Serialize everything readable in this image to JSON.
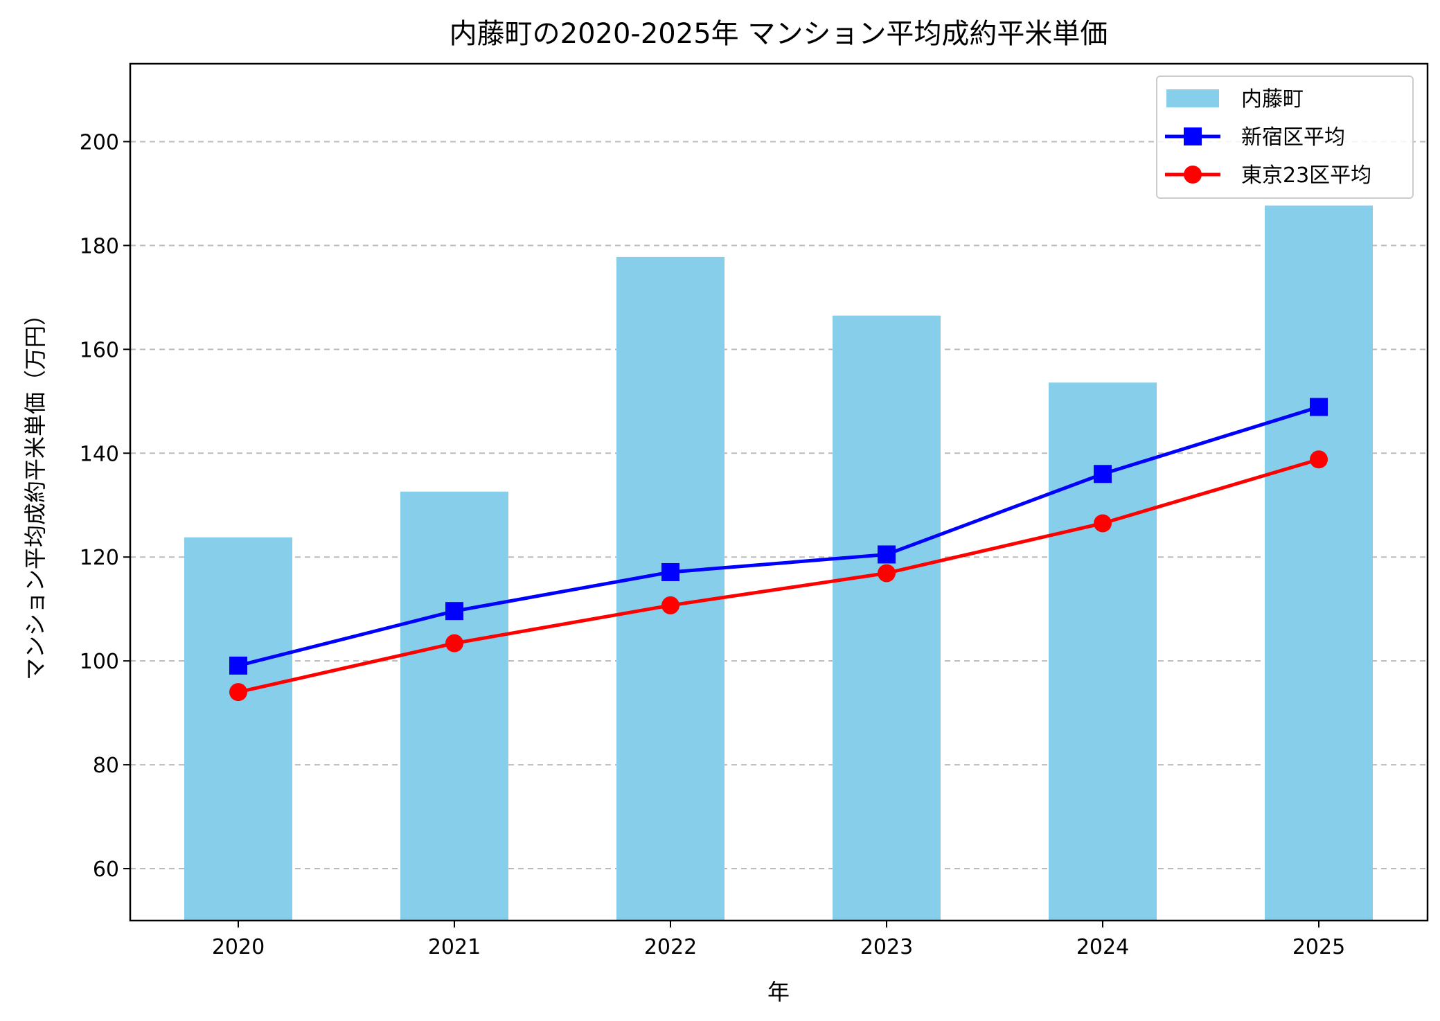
{
  "chart_data": {
    "type": "bar",
    "title": "内藤町の2020-2025年 マンション平均成約平米単価",
    "xlabel": "年",
    "ylabel": "マンション平均成約平米単価（万円）",
    "categories": [
      "2020",
      "2021",
      "2022",
      "2023",
      "2024",
      "2025"
    ],
    "ylim": [
      50,
      215
    ],
    "yticks": [
      60,
      80,
      100,
      120,
      140,
      160,
      180,
      200
    ],
    "grid": "y-dashed",
    "legend_position": "top-right",
    "series": [
      {
        "name": "内藤町",
        "kind": "bar",
        "color": "#87ceeb",
        "values": [
          123.8,
          132.6,
          177.8,
          166.5,
          153.6,
          187.7
        ]
      },
      {
        "name": "新宿区平均",
        "kind": "line",
        "marker": "square",
        "color": "#0000ff",
        "values": [
          99.1,
          109.6,
          117.1,
          120.5,
          136.0,
          148.9
        ]
      },
      {
        "name": "東京23区平均",
        "kind": "line",
        "marker": "circle",
        "color": "#ff0000",
        "values": [
          94.0,
          103.4,
          110.7,
          116.9,
          126.5,
          138.8
        ]
      }
    ]
  }
}
